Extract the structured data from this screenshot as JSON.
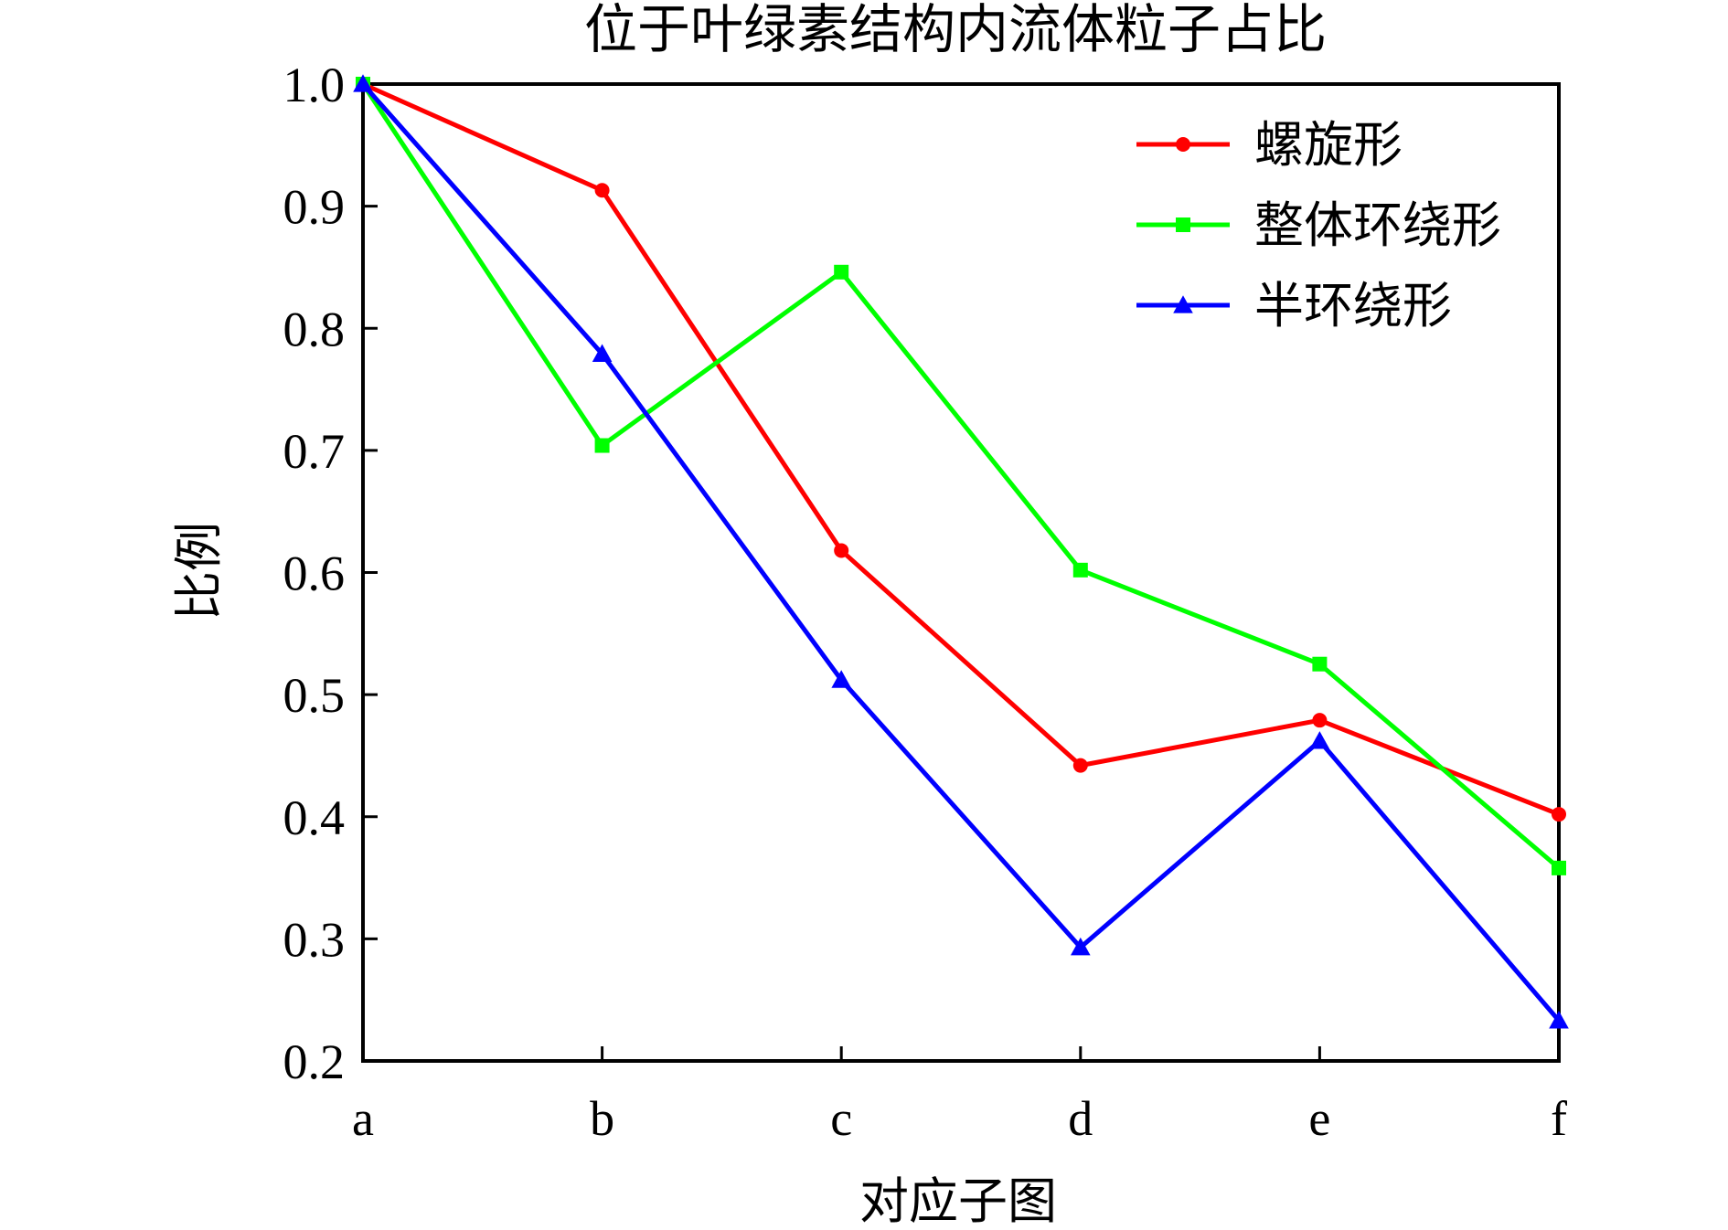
{
  "chart_data": {
    "type": "line",
    "title": "位于叶绿素结构内流体粒子占比",
    "xlabel": "对应子图",
    "ylabel": "比例",
    "categories": [
      "a",
      "b",
      "c",
      "d",
      "e",
      "f"
    ],
    "ylim": [
      0.2,
      1.0
    ],
    "yticks": [
      "0.2",
      "0.3",
      "0.4",
      "0.5",
      "0.6",
      "0.7",
      "0.8",
      "0.9",
      "1.0"
    ],
    "grid": false,
    "legend_position": "top-right",
    "series": [
      {
        "name": "螺旋形",
        "color": "#ff0000",
        "marker": "circle",
        "values": [
          1.0,
          0.913,
          0.618,
          0.442,
          0.479,
          0.402
        ]
      },
      {
        "name": "整体环绕形",
        "color": "#00ff00",
        "marker": "square",
        "values": [
          1.0,
          0.704,
          0.846,
          0.602,
          0.525,
          0.358
        ]
      },
      {
        "name": "半环绕形",
        "color": "#0000ff",
        "marker": "triangle",
        "values": [
          1.0,
          0.779,
          0.512,
          0.293,
          0.462,
          0.233
        ]
      }
    ]
  }
}
